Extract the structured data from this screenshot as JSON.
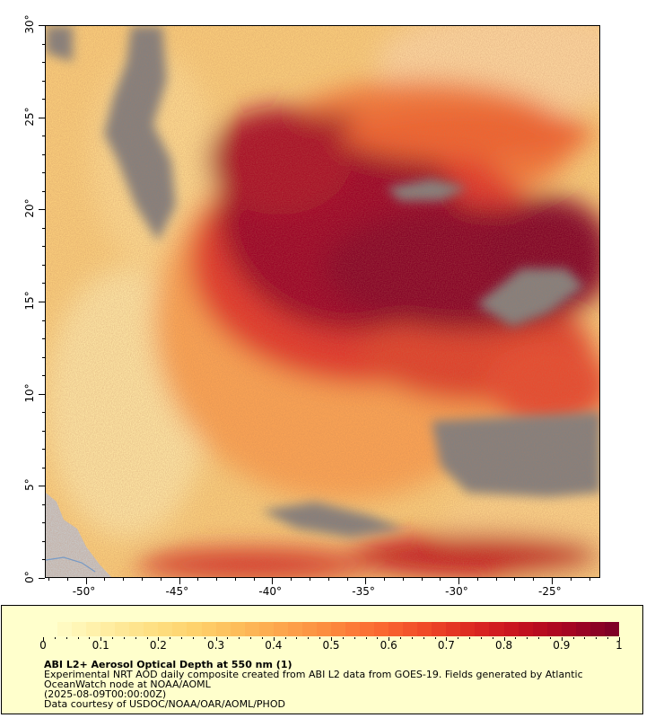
{
  "map": {
    "lat_labels": [
      "0°",
      "5°",
      "10°",
      "15°",
      "20°",
      "25°",
      "30°"
    ],
    "lon_labels": [
      "-50°",
      "-45°",
      "-40°",
      "-35°",
      "-30°",
      "-25°"
    ],
    "lat_range": [
      0,
      30
    ],
    "lon_range": [
      -52.2,
      -22.4
    ],
    "no_data_color": "#808080",
    "land_color": "#c8c8c8",
    "water_line_color": "#6a9fd8"
  },
  "legend": {
    "colorbar_labels": [
      "0",
      "0.1",
      "0.2",
      "0.3",
      "0.4",
      "0.5",
      "0.6",
      "0.7",
      "0.8",
      "0.9",
      "1"
    ],
    "colorbar_range": [
      0,
      1
    ],
    "colors": [
      "#ffffcc",
      "#fff0a8",
      "#fee288",
      "#fed46e",
      "#fdbd5a",
      "#fda44c",
      "#fc8a3e",
      "#fb6a32",
      "#f04a28",
      "#dd2a22",
      "#c6121e",
      "#a80522",
      "#800026"
    ],
    "title": "ABI L2+ Aerosol Optical Depth at 550 nm (1)",
    "description": "Experimental NRT AOD daily composite created from ABI L2 data from GOES-19. Fields generated by Atlantic OceanWatch node at NOAA/AOML",
    "timestamp": "(2025-08-09T00:00:00Z)",
    "credit": "Data courtesy of USDOC/NOAA/OAR/AOML/PHOD"
  }
}
